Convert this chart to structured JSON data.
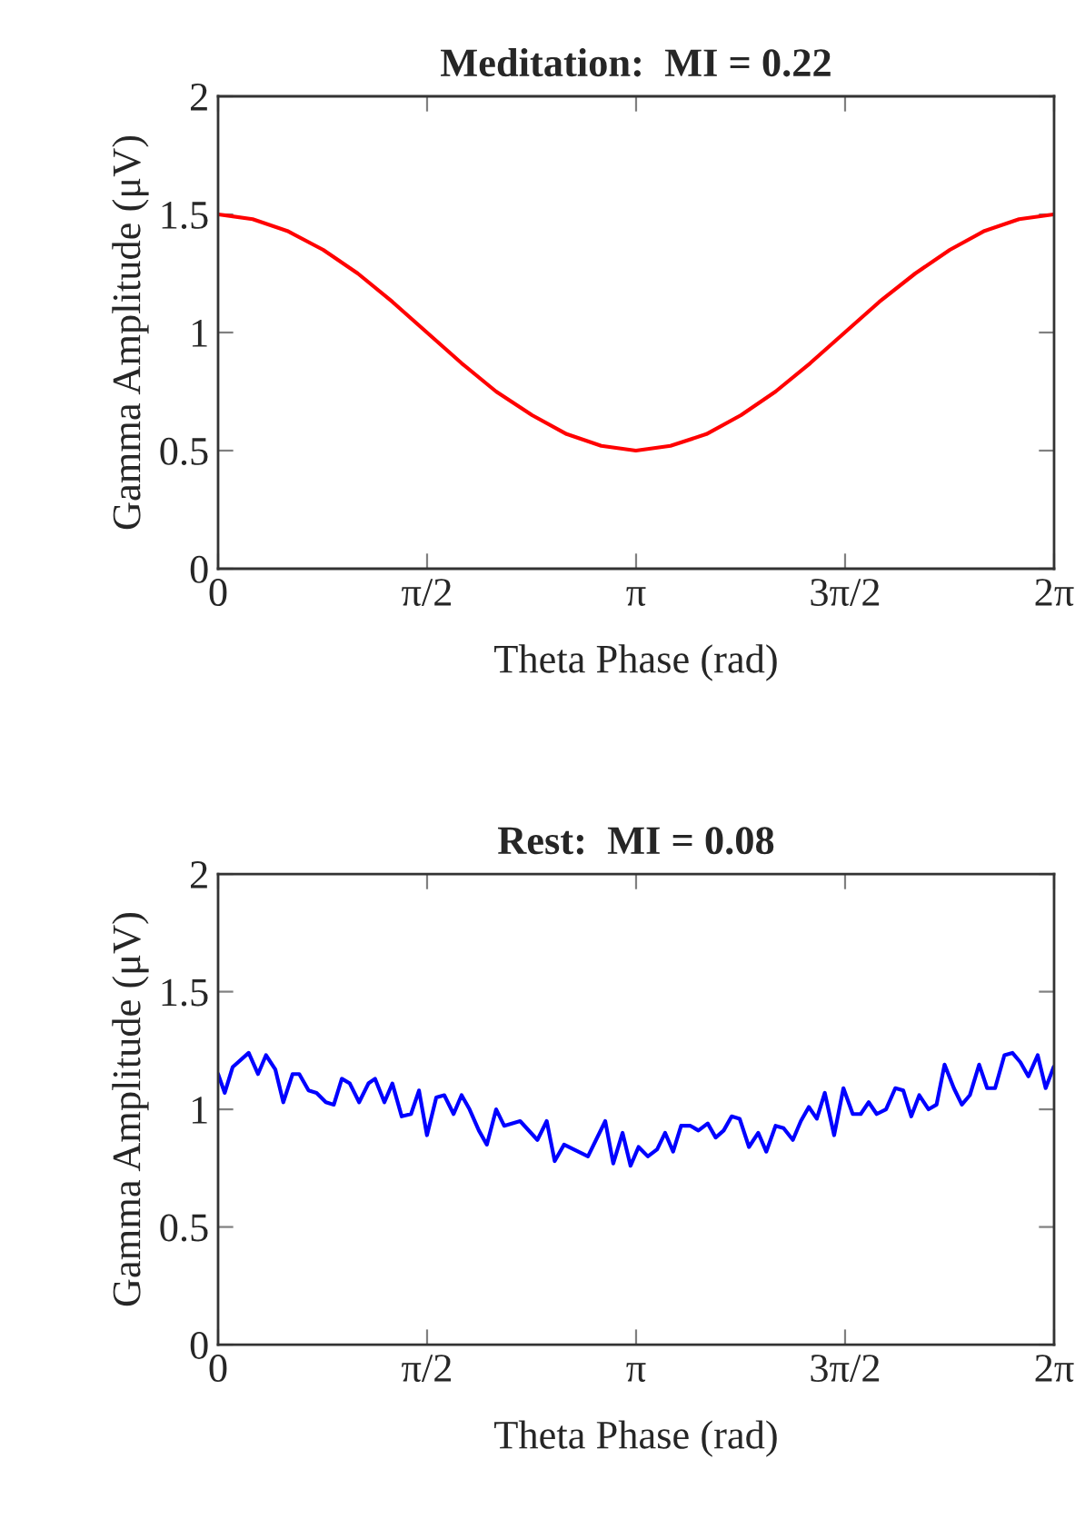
{
  "chart_data": [
    {
      "type": "line",
      "title": "Meditation:  MI = 0.22",
      "xlabel": "Theta Phase (rad)",
      "ylabel": "Gamma Amplitude (μV)",
      "xlim": [
        0,
        6.2832
      ],
      "ylim": [
        0,
        2
      ],
      "xticks": [
        0,
        {
          "value": 1.5708,
          "label": "π/2"
        },
        {
          "value": 3.1416,
          "label": "π"
        },
        {
          "value": 4.7124,
          "label": "3π/2"
        },
        {
          "value": 6.2832,
          "label": "2π"
        }
      ],
      "yticks": [
        0,
        0.5,
        1,
        1.5,
        2
      ],
      "grid": false,
      "legend": false,
      "marker": "none",
      "line_style": "solid",
      "series": [
        {
          "color": "#ff0000",
          "x": [
            0,
            0.26,
            0.52,
            0.79,
            1.05,
            1.31,
            1.57,
            1.83,
            2.09,
            2.36,
            2.62,
            2.88,
            3.14,
            3.4,
            3.67,
            3.93,
            4.19,
            4.45,
            4.71,
            4.97,
            5.24,
            5.5,
            5.76,
            6.02,
            6.28
          ],
          "values": [
            1.5,
            1.48,
            1.43,
            1.35,
            1.25,
            1.13,
            1.0,
            0.87,
            0.75,
            0.65,
            0.57,
            0.52,
            0.5,
            0.52,
            0.57,
            0.65,
            0.75,
            0.87,
            1.0,
            1.13,
            1.25,
            1.35,
            1.43,
            1.48,
            1.5
          ]
        }
      ]
    },
    {
      "type": "line",
      "title": "Rest:  MI = 0.08",
      "xlabel": "Theta Phase (rad)",
      "ylabel": "Gamma Amplitude (μV)",
      "xlim": [
        0,
        6.2832
      ],
      "ylim": [
        0,
        2
      ],
      "xticks": [
        0,
        {
          "value": 1.5708,
          "label": "π/2"
        },
        {
          "value": 3.1416,
          "label": "π"
        },
        {
          "value": 4.7124,
          "label": "3π/2"
        },
        {
          "value": 6.2832,
          "label": "2π"
        }
      ],
      "yticks": [
        0,
        0.5,
        1,
        1.5,
        2
      ],
      "grid": false,
      "legend": false,
      "marker": "none",
      "line_style": "solid",
      "series": [
        {
          "color": "#0000ff",
          "x": [
            0,
            0.05,
            0.11,
            0.23,
            0.3,
            0.36,
            0.43,
            0.49,
            0.56,
            0.61,
            0.68,
            0.74,
            0.81,
            0.87,
            0.93,
            0.99,
            1.06,
            1.13,
            1.18,
            1.25,
            1.31,
            1.38,
            1.45,
            1.51,
            1.57,
            1.64,
            1.7,
            1.77,
            1.83,
            1.89,
            1.96,
            2.02,
            2.09,
            2.15,
            2.27,
            2.4,
            2.47,
            2.53,
            2.6,
            2.78,
            2.91,
            2.97,
            3.04,
            3.1,
            3.16,
            3.23,
            3.3,
            3.36,
            3.42,
            3.48,
            3.55,
            3.61,
            3.68,
            3.74,
            3.8,
            3.86,
            3.92,
            3.99,
            4.06,
            4.12,
            4.19,
            4.25,
            4.32,
            4.38,
            4.44,
            4.5,
            4.56,
            4.63,
            4.7,
            4.77,
            4.83,
            4.89,
            4.95,
            5.02,
            5.09,
            5.15,
            5.21,
            5.27,
            5.34,
            5.4,
            5.46,
            5.53,
            5.59,
            5.65,
            5.72,
            5.78,
            5.84,
            5.91,
            5.97,
            6.03,
            6.09,
            6.16,
            6.22,
            6.28
          ],
          "values": [
            1.15,
            1.07,
            1.18,
            1.24,
            1.15,
            1.23,
            1.17,
            1.03,
            1.15,
            1.15,
            1.08,
            1.07,
            1.03,
            1.02,
            1.13,
            1.11,
            1.03,
            1.11,
            1.13,
            1.03,
            1.11,
            0.97,
            0.98,
            1.08,
            0.89,
            1.05,
            1.06,
            0.98,
            1.06,
            1.0,
            0.91,
            0.85,
            1.0,
            0.93,
            0.95,
            0.87,
            0.95,
            0.78,
            0.85,
            0.8,
            0.95,
            0.77,
            0.9,
            0.76,
            0.84,
            0.8,
            0.83,
            0.9,
            0.82,
            0.93,
            0.93,
            0.91,
            0.94,
            0.88,
            0.91,
            0.97,
            0.96,
            0.84,
            0.9,
            0.82,
            0.93,
            0.92,
            0.87,
            0.95,
            1.01,
            0.96,
            1.07,
            0.89,
            1.09,
            0.98,
            0.98,
            1.03,
            0.98,
            1.0,
            1.09,
            1.08,
            0.97,
            1.06,
            1.0,
            1.02,
            1.19,
            1.09,
            1.02,
            1.06,
            1.19,
            1.09,
            1.09,
            1.23,
            1.24,
            1.2,
            1.14,
            1.23,
            1.09,
            1.18
          ]
        }
      ]
    }
  ]
}
